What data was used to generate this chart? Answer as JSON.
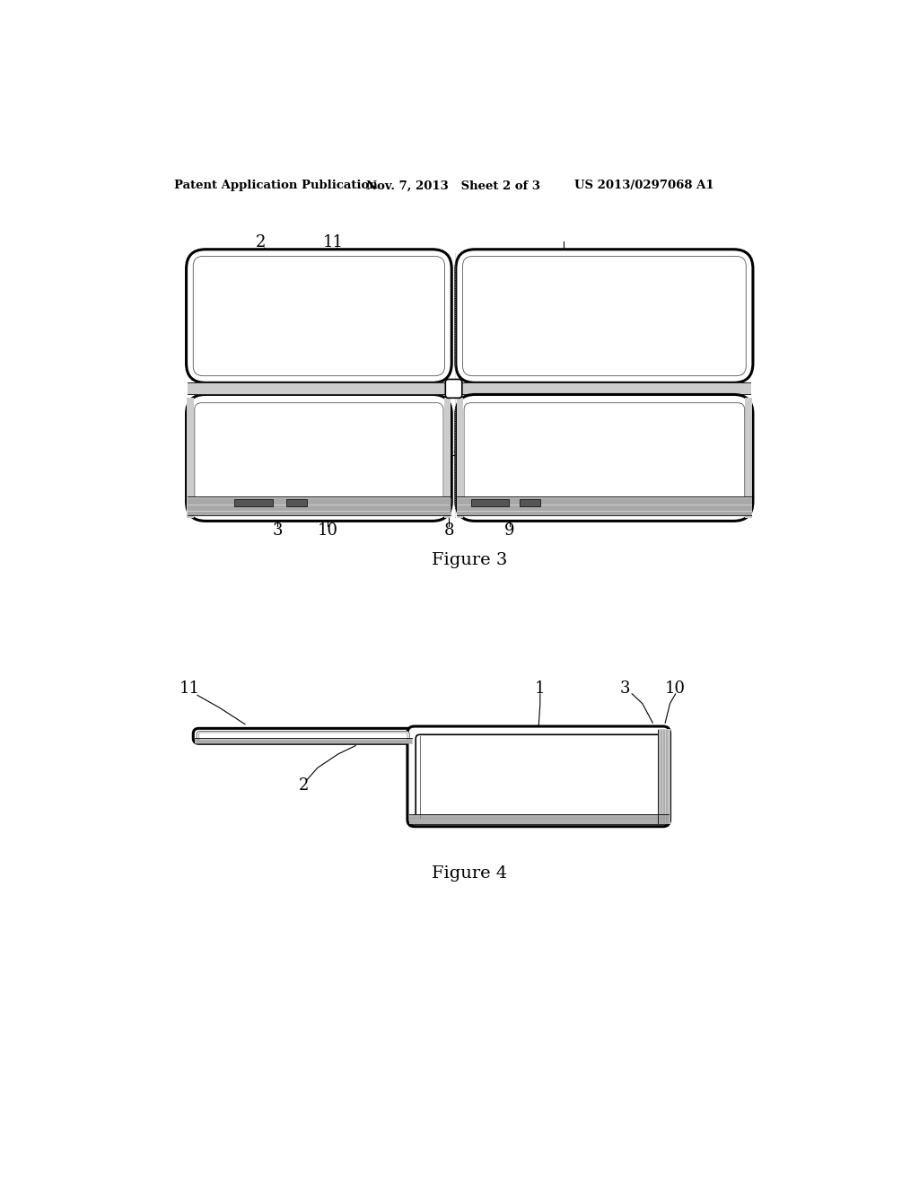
{
  "bg_color": "#ffffff",
  "header_left": "Patent Application Publication",
  "header_mid": "Nov. 7, 2013   Sheet 2 of 3",
  "header_right": "US 2013/0297068 A1",
  "fig3_caption": "Figure 3",
  "fig4_caption": "Figure 4",
  "lw_outer": 2.2,
  "lw_mid": 1.2,
  "lw_thin": 0.6,
  "black": "#000000",
  "gray_light": "#cccccc",
  "gray_mid": "#999999",
  "gray_dark": "#555555",
  "gray_hatch": "#aaaaaa"
}
